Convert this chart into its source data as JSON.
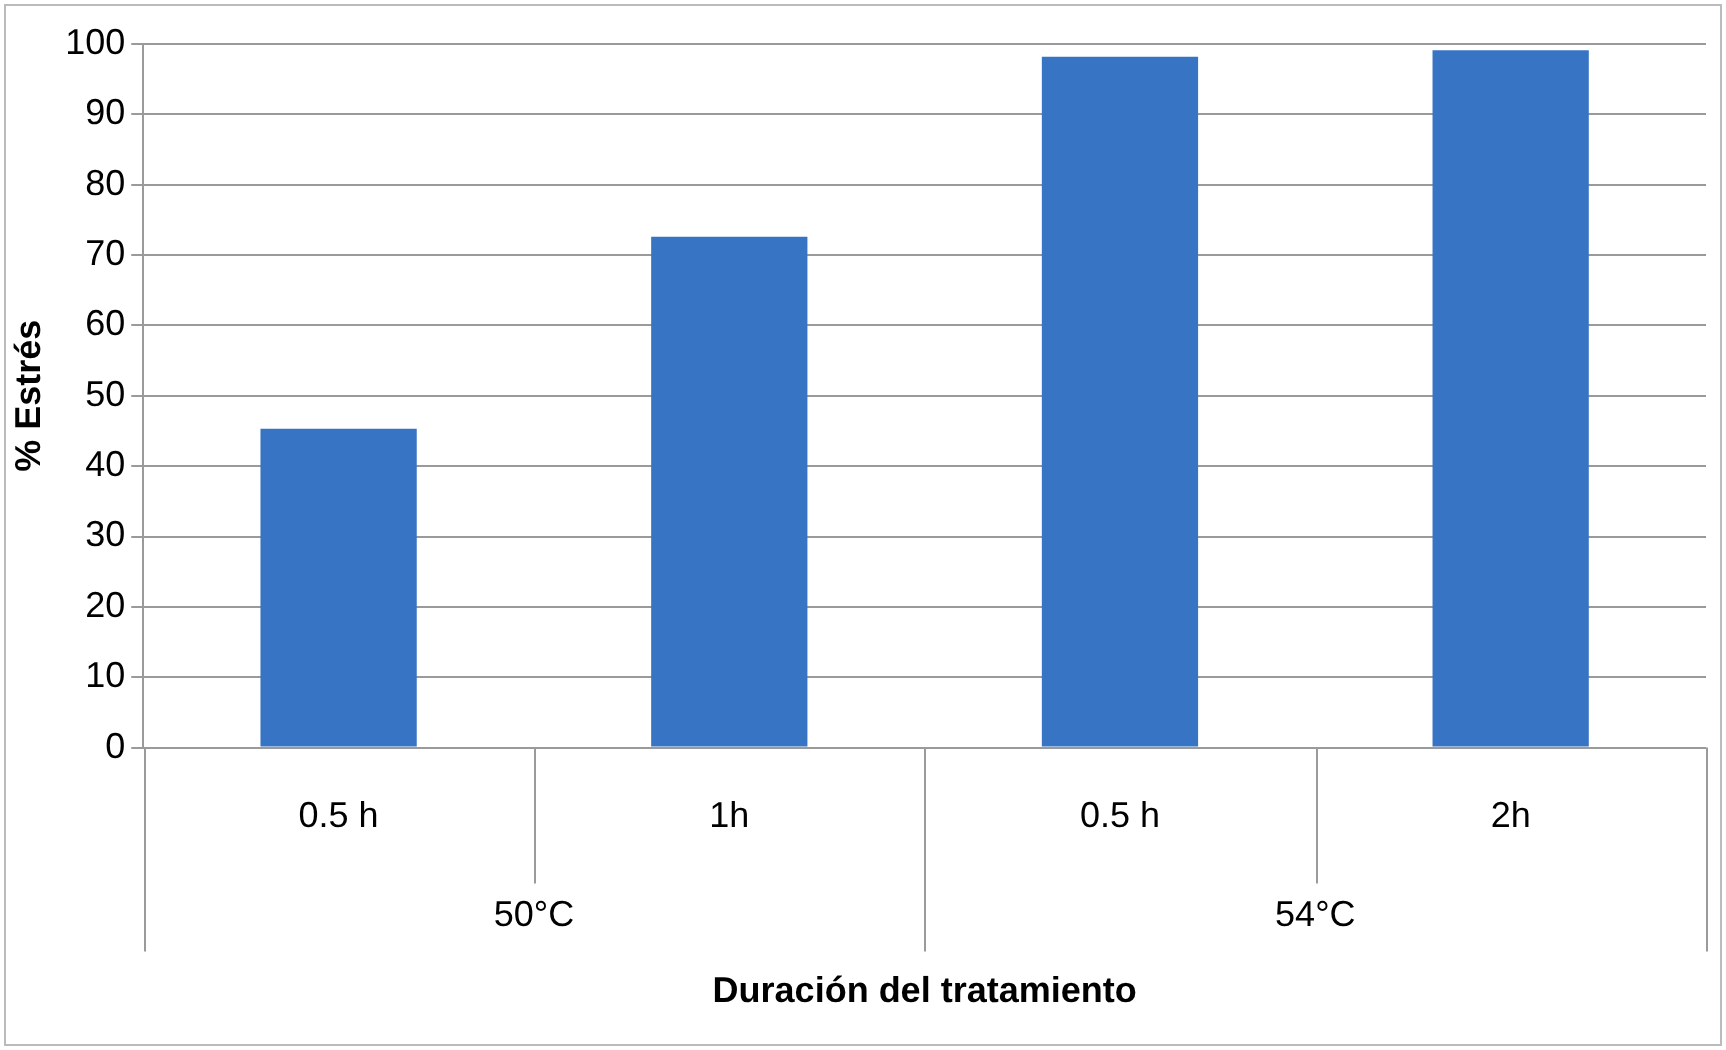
{
  "chart_data": {
    "type": "bar",
    "xlabel": "Duración del tratamiento",
    "ylabel": "% Estrés",
    "categories": [
      "0.5 h",
      "1h",
      "0.5 h",
      "2h"
    ],
    "values": [
      45.3,
      72.6,
      98.2,
      99.1
    ],
    "color": "#3874c4",
    "ylim": [
      0,
      100
    ],
    "yticks": [
      0,
      10,
      20,
      30,
      40,
      50,
      60,
      70,
      80,
      90,
      100
    ],
    "grid": "y",
    "legend": false,
    "annotations": [
      "50°C",
      "54°C"
    ]
  }
}
